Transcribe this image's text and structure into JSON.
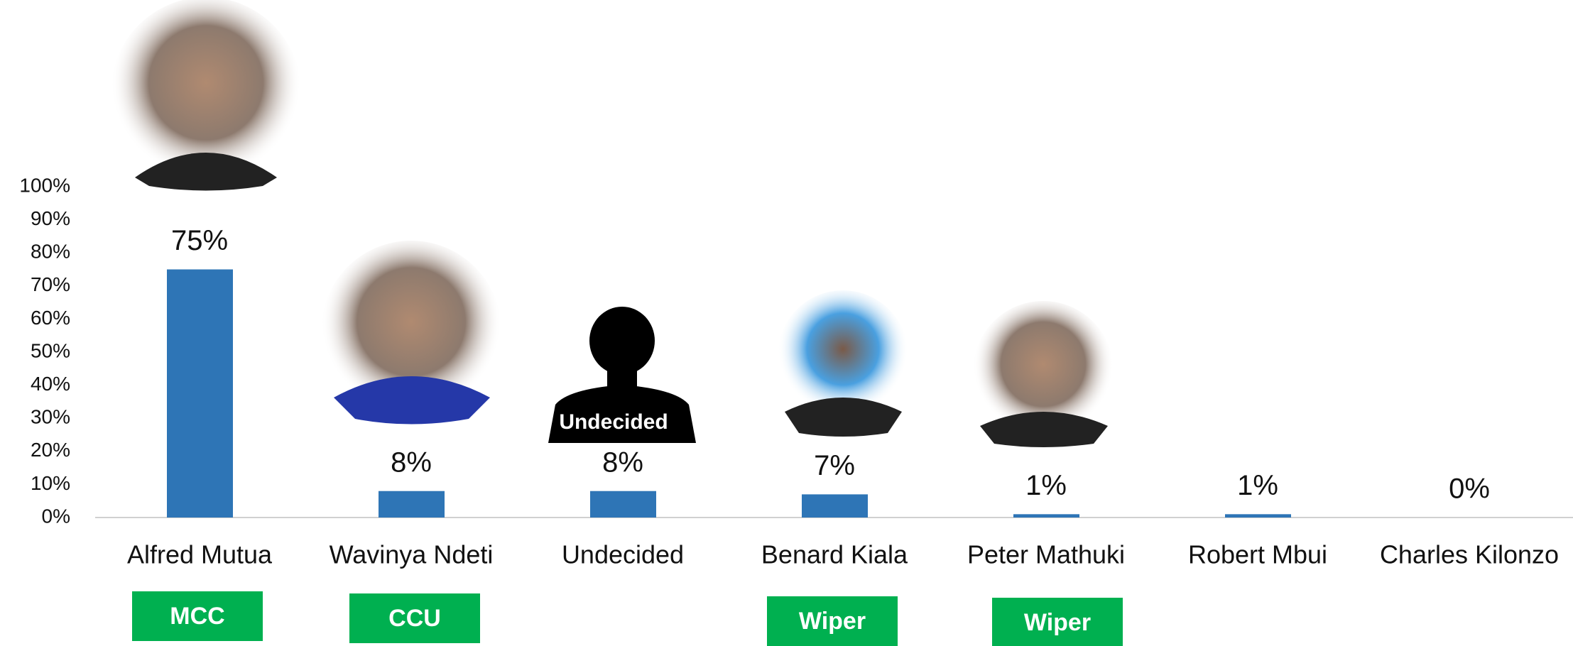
{
  "chart_data": {
    "type": "bar",
    "categories": [
      "Alfred Mutua",
      "Wavinya Ndeti",
      "Undecided",
      "Benard Kiala",
      "Peter Mathuki",
      "Robert Mbui",
      "Charles Kilonzo"
    ],
    "values": [
      75,
      8,
      8,
      7,
      1,
      1,
      0
    ],
    "value_labels": [
      "75%",
      "8%",
      "8%",
      "7%",
      "1%",
      "1%",
      "0%"
    ],
    "parties": [
      "MCC",
      "CCU",
      null,
      "Wiper",
      "Wiper",
      null,
      null
    ],
    "silhouette_label": "Undecided",
    "color": "#2e75b6",
    "party_color": "#00b050",
    "ylim": [
      0,
      100
    ],
    "yticks": [
      {
        "value": 0,
        "label": "0%"
      },
      {
        "value": 10,
        "label": "10%"
      },
      {
        "value": 20,
        "label": "20%"
      },
      {
        "value": 30,
        "label": "30%"
      },
      {
        "value": 40,
        "label": "40%"
      },
      {
        "value": 50,
        "label": "50%"
      },
      {
        "value": 60,
        "label": "60%"
      },
      {
        "value": 70,
        "label": "70%"
      },
      {
        "value": 80,
        "label": "80%"
      },
      {
        "value": 90,
        "label": "90%"
      },
      {
        "value": 100,
        "label": "100%"
      }
    ],
    "grid": false
  }
}
